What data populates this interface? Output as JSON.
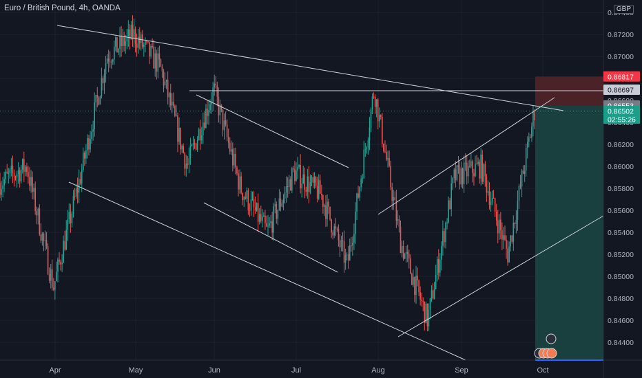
{
  "header": {
    "title": "Euro / British Pound, 4h, OANDA",
    "currency": "GBP"
  },
  "colors": {
    "background": "#131722",
    "up": "#26a69a",
    "down": "#ef5350",
    "drawing": "#d1d4dc",
    "target_zone": "#1a3f3f",
    "stop_zone": "#4a2228",
    "axis_text": "#b2b5be"
  },
  "price_axis": {
    "ticks": [
      "0.87400",
      "0.87200",
      "0.87000",
      "0.86800",
      "0.86600",
      "0.86400",
      "0.86200",
      "0.86000",
      "0.85800",
      "0.85600",
      "0.85400",
      "0.85200",
      "0.85000",
      "0.84800",
      "0.84600",
      "0.84400"
    ],
    "badges": [
      {
        "label": "0.86817",
        "value": 0.86817,
        "color": "#f23645",
        "text": "#ffffff"
      },
      {
        "label": "0.86697",
        "value": 0.86697,
        "color": "#c9ccd6",
        "text": "#131722"
      },
      {
        "label": "0.86553",
        "value": 0.86553,
        "color": "#787b86",
        "text": "#ffffff"
      },
      {
        "label": "0.86502",
        "value": 0.86502,
        "color": "#1b9e8a",
        "text": "#ffffff",
        "sub": "02:55:26"
      }
    ]
  },
  "time_axis": {
    "labels": [
      "Apr",
      "May",
      "Jun",
      "Jul",
      "Aug",
      "Sep",
      "Oct"
    ]
  },
  "chart_data": {
    "type": "candlestick",
    "title": "Euro / British Pound, 4h, OANDA",
    "ylim": [
      0.8425,
      0.8746
    ],
    "x": [
      "Apr",
      "May",
      "Jun",
      "Jul",
      "Aug",
      "Sep",
      "Oct"
    ],
    "price_path": [
      {
        "t": "mid-Mar",
        "close": 0.8585
      },
      {
        "t": "late-Mar",
        "close": 0.86
      },
      {
        "t": "early-Apr",
        "close": 0.849
      },
      {
        "t": "Apr",
        "close": 0.859
      },
      {
        "t": "mid-Apr",
        "close": 0.87
      },
      {
        "t": "late-Apr",
        "close": 0.872
      },
      {
        "t": "early-May",
        "close": 0.869
      },
      {
        "t": "mid-May",
        "close": 0.86
      },
      {
        "t": "late-May",
        "close": 0.867
      },
      {
        "t": "Jun",
        "close": 0.858
      },
      {
        "t": "mid-Jun",
        "close": 0.854
      },
      {
        "t": "late-Jun",
        "close": 0.8595
      },
      {
        "t": "early-Jul",
        "close": 0.8575
      },
      {
        "t": "mid-Jul",
        "close": 0.851
      },
      {
        "t": "late-Jul",
        "close": 0.867
      },
      {
        "t": "early-Aug",
        "close": 0.853
      },
      {
        "t": "mid-Aug",
        "close": 0.846
      },
      {
        "t": "late-Aug",
        "close": 0.859
      },
      {
        "t": "early-Sep",
        "close": 0.86
      },
      {
        "t": "mid-Sep",
        "close": 0.852
      },
      {
        "t": "late-Sep",
        "close": 0.865
      }
    ],
    "last_price": 0.86502,
    "levels": {
      "stop": 0.86817,
      "horizontal": 0.86697,
      "entry": 0.86553,
      "target": 0.8429
    }
  }
}
